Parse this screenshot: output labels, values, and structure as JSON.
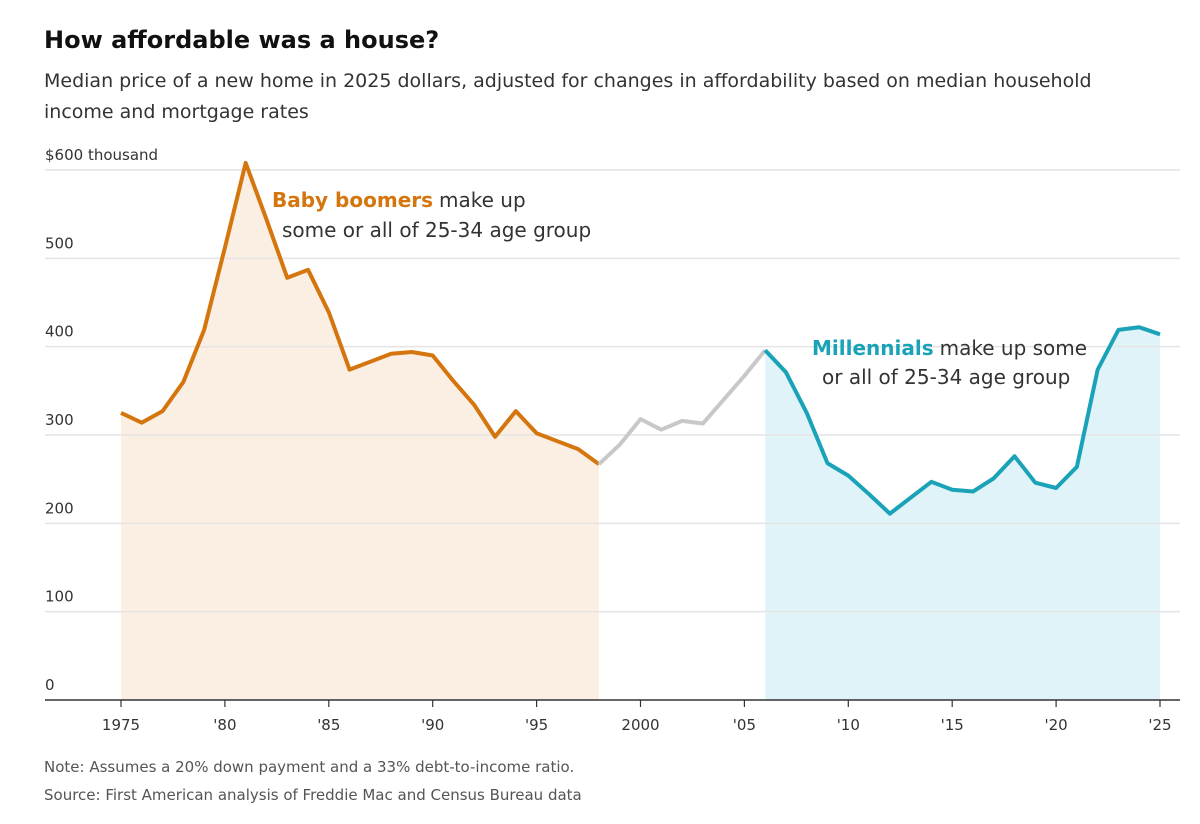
{
  "chart_data": {
    "type": "area-line",
    "title": "How affordable was a house?",
    "subtitle": "Median price of a new home in 2025 dollars, adjusted for changes in affordability based on median household income and mortgage rates",
    "note": "Note: Assumes a 20% down payment and a 33% debt-to-income ratio.",
    "source": "Source: First American analysis of Freddie Mac and Census Bureau data",
    "xlim": [
      1975,
      2025
    ],
    "xticks": [
      1975,
      {
        "value": 1980,
        "label": "'80"
      },
      {
        "value": 1985,
        "label": "'85"
      },
      {
        "value": 1990,
        "label": "'90"
      },
      {
        "value": 1995,
        "label": "'95"
      },
      2000,
      {
        "value": 2005,
        "label": "'05"
      },
      {
        "value": 2010,
        "label": "'10"
      },
      {
        "value": 2015,
        "label": "'15"
      },
      {
        "value": 2020,
        "label": "'20"
      },
      {
        "value": 2025,
        "label": "'25"
      }
    ],
    "ylim": [
      0,
      600
    ],
    "yticks": [
      0,
      100,
      200,
      300,
      400,
      500,
      {
        "value": 600,
        "label": "$600 thousand"
      }
    ],
    "grid": true,
    "series": [
      {
        "color": "#d4750e",
        "fill": "#fbefe3",
        "x": [
          1975,
          1976,
          1977,
          1978,
          1979,
          1980,
          1981,
          1982,
          1983,
          1984,
          1985,
          1986,
          1987,
          1988,
          1989,
          1990,
          1991,
          1992,
          1993,
          1994,
          1995,
          1996,
          1997,
          1998
        ],
        "values": [
          325,
          314,
          327,
          360,
          419,
          512,
          608,
          544,
          478,
          487,
          439,
          374,
          383,
          392,
          394,
          390,
          361,
          334,
          298,
          327,
          302,
          293,
          284,
          267
        ]
      },
      {
        "color": "#c8c8c8",
        "x": [
          1998,
          1999,
          2000,
          2001,
          2002,
          2003,
          2004,
          2005,
          2006
        ],
        "values": [
          267,
          289,
          318,
          306,
          316,
          313,
          340,
          367,
          396
        ]
      },
      {
        "color": "#1aa3b8",
        "fill": "#e0f3f8",
        "x": [
          2006,
          2007,
          2008,
          2009,
          2010,
          2011,
          2012,
          2013,
          2014,
          2015,
          2016,
          2017,
          2018,
          2019,
          2020,
          2021,
          2022,
          2023,
          2024,
          2025
        ],
        "values": [
          396,
          371,
          325,
          268,
          254,
          233,
          211,
          229,
          247,
          238,
          236,
          251,
          276,
          246,
          240,
          264,
          374,
          419,
          422,
          414
        ]
      }
    ],
    "annotations": [
      {
        "highlight": "Baby boomers",
        "text": "make up",
        "text2": "some or all of 25-34 age group",
        "color": "#d4750e"
      },
      {
        "highlight": "Millennials",
        "text": "make up some",
        "text2": "or all of 25-34 age group",
        "color": "#1aa3b8"
      }
    ]
  }
}
